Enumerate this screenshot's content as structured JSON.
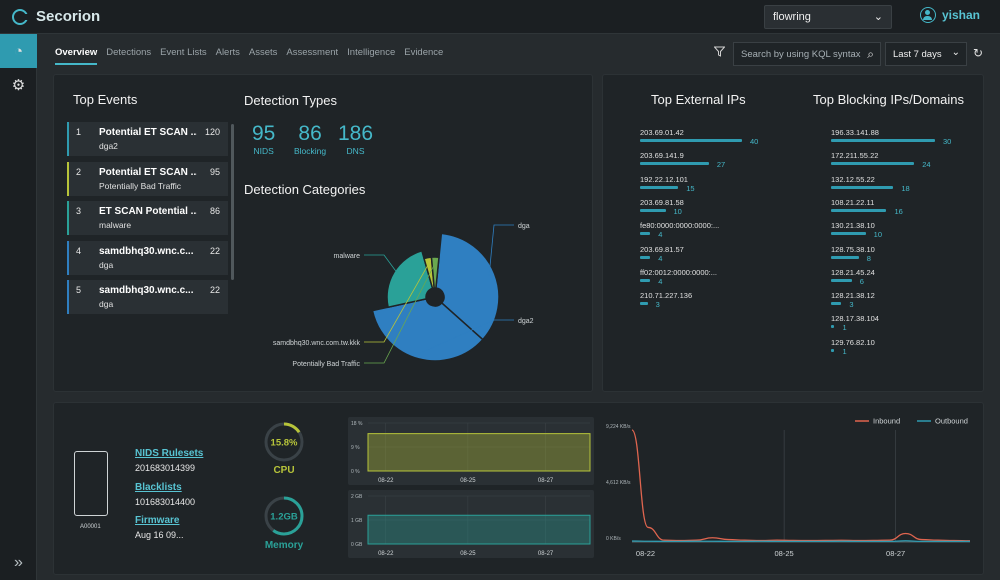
{
  "app": {
    "name": "Secorion",
    "workspace": "flowring",
    "user": "yishan"
  },
  "tabs": [
    "Overview",
    "Detections",
    "Event Lists",
    "Alerts",
    "Assets",
    "Assessment",
    "Intelligence",
    "Evidence"
  ],
  "toolbar": {
    "search_placeholder": "Search by using KQL syntax",
    "range": "Last 7 days"
  },
  "top_events": {
    "title": "Top Events",
    "items": [
      {
        "num": "1",
        "name": "Potential ET SCAN ...",
        "count": "120",
        "sub": "dga2"
      },
      {
        "num": "2",
        "name": "Potential ET SCAN ...",
        "count": "95",
        "sub": "Potentially Bad Traffic"
      },
      {
        "num": "3",
        "name": "ET SCAN Potential ...",
        "count": "86",
        "sub": "malware"
      },
      {
        "num": "4",
        "name": "samdbhq30.wnc.c...",
        "count": "22",
        "sub": "dga"
      },
      {
        "num": "5",
        "name": "samdbhq30.wnc.c...",
        "count": "22",
        "sub": "dga"
      }
    ]
  },
  "detection_types": {
    "title": "Detection Types",
    "items": [
      {
        "value": "95",
        "label": "NIDS"
      },
      {
        "value": "86",
        "label": "Blocking"
      },
      {
        "value": "186",
        "label": "DNS"
      }
    ]
  },
  "detection_categories": {
    "title": "Detection Categories",
    "slices": [
      {
        "label": "dga",
        "value": 35,
        "color": "#2f7fc1"
      },
      {
        "label": "dga2",
        "value": 35,
        "color": "#2f7fc1"
      },
      {
        "label": "malware",
        "value": 24,
        "color": "#2aa198"
      },
      {
        "label": "samdbhq30.wnc.com.tw.kkk",
        "value": 3,
        "color": "#b7c43a"
      },
      {
        "label": "Potentially Bad Traffic",
        "value": 3,
        "color": "#6aa84f"
      }
    ]
  },
  "top_external_ips": {
    "title": "Top External IPs",
    "items": [
      {
        "ip": "203.69.01.42",
        "value": 40
      },
      {
        "ip": "203.69.141.9",
        "value": 27
      },
      {
        "ip": "192.22.12.101",
        "value": 15
      },
      {
        "ip": "203.69.81.58",
        "value": 10
      },
      {
        "ip": "fe80:0000:0000:0000:...",
        "value": 4
      },
      {
        "ip": "203.69.81.57",
        "value": 4
      },
      {
        "ip": "ff02:0012:0000:0000:...",
        "value": 4
      },
      {
        "ip": "210.71.227.136",
        "value": 3
      }
    ]
  },
  "top_blocking": {
    "title": "Top Blocking IPs/Domains",
    "items": [
      {
        "ip": "196.33.141.88",
        "value": 30
      },
      {
        "ip": "172.211.55.22",
        "value": 24
      },
      {
        "ip": "132.12.55.22",
        "value": 18
      },
      {
        "ip": "108.21.22.11",
        "value": 16
      },
      {
        "ip": "130.21.38.10",
        "value": 10
      },
      {
        "ip": "128.75.38.10",
        "value": 8
      },
      {
        "ip": "128.21.45.24",
        "value": 6
      },
      {
        "ip": "128.21.38.12",
        "value": 3
      },
      {
        "ip": "128.17.38.104",
        "value": 1
      },
      {
        "ip": "129.76.82.10",
        "value": 1
      }
    ]
  },
  "device": {
    "label": "A00001",
    "nids_label": "NIDS Rulesets",
    "nids_value": "201683014399",
    "blacklists_label": "Blacklists",
    "blacklists_value": "101683014400",
    "firmware_label": "Firmware",
    "firmware_value": "Aug 16 09..."
  },
  "gauges": [
    {
      "value_text": "15.8%",
      "fraction": 0.158,
      "label": "CPU",
      "color": "#b7c43a"
    },
    {
      "value_text": "1.2GB",
      "fraction": 0.6,
      "label": "Memory",
      "color": "#2aa198"
    }
  ],
  "chart_data": [
    {
      "type": "area",
      "series": [
        {
          "name": "CPU",
          "values": [
            14,
            14,
            14,
            14,
            14,
            14,
            14,
            14,
            14,
            14,
            14,
            14
          ]
        }
      ],
      "y_ticks": [
        "18 %",
        "9 %",
        "0 %"
      ],
      "ylim": [
        0,
        18
      ],
      "x_ticks": [
        "08-22",
        "08-25",
        "08-27"
      ],
      "color": "#b7c43a"
    },
    {
      "type": "area",
      "series": [
        {
          "name": "Memory",
          "values": [
            1.2,
            1.2,
            1.2,
            1.2,
            1.2,
            1.2,
            1.2,
            1.2,
            1.2,
            1.2,
            1.2,
            1.2
          ]
        }
      ],
      "y_ticks": [
        "2 GB",
        "1 GB",
        "0 GB"
      ],
      "ylim": [
        0,
        2
      ],
      "x_ticks": [
        "08-22",
        "08-25",
        "08-27"
      ],
      "color": "#2aa198"
    },
    {
      "type": "line",
      "y_ticks": [
        "9,224 KB/s",
        "4,612 KB/s",
        "0 KB/s"
      ],
      "ylim": [
        0,
        9224
      ],
      "x_ticks": [
        "08-22",
        "08-25",
        "08-27"
      ],
      "series": [
        {
          "name": "Inbound",
          "color": "#e0654f",
          "values": [
            9224,
            1200,
            150,
            120,
            150,
            350,
            200,
            150,
            120,
            150,
            130,
            120,
            130,
            140,
            120,
            130,
            150,
            700,
            200,
            150,
            120,
            100
          ]
        },
        {
          "name": "Outbound",
          "color": "#2f9bb0",
          "values": [
            80,
            60,
            50,
            50,
            60,
            60,
            50,
            50,
            60,
            50,
            50,
            50,
            50,
            60,
            50,
            50,
            50,
            100,
            50,
            50,
            50,
            50
          ]
        }
      ]
    }
  ]
}
